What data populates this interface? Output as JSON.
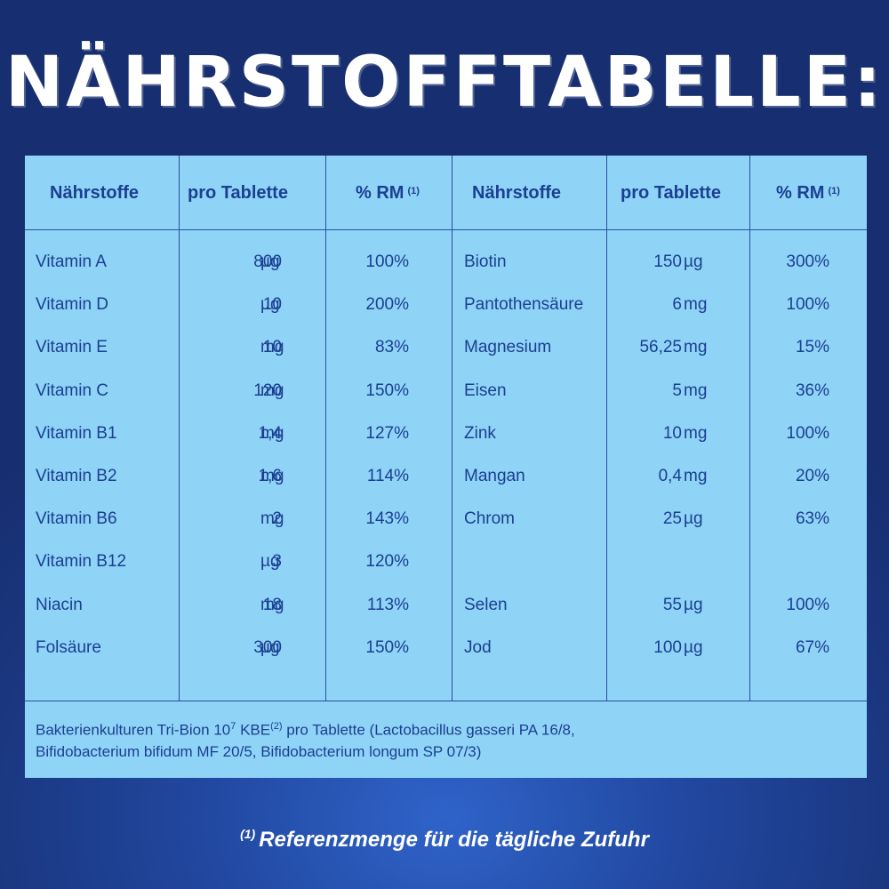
{
  "title": "NÄHRSTOFFTABELLE:",
  "headers": {
    "naehrstoffe": "Nährstoffe",
    "pro_tablette": "pro Tablette",
    "rm": "% RM",
    "rm_sup": "(1)"
  },
  "left_rows": [
    {
      "name": "Vitamin A",
      "amount": "800",
      "unit": "µg",
      "rm": "100%"
    },
    {
      "name": "Vitamin D",
      "amount": "10",
      "unit": "µg",
      "rm": "200%"
    },
    {
      "name": "Vitamin E",
      "amount": "10",
      "unit": "mg",
      "rm": "83%"
    },
    {
      "name": "Vitamin C",
      "amount": "120",
      "unit": "mg",
      "rm": "150%"
    },
    {
      "name": "Vitamin B1",
      "amount": "1,4",
      "unit": "mg",
      "rm": "127%"
    },
    {
      "name": "Vitamin B2",
      "amount": "1,6",
      "unit": "mg",
      "rm": "114%"
    },
    {
      "name": "Vitamin B6",
      "amount": "2",
      "unit": "mg",
      "rm": "143%"
    },
    {
      "name": "Vitamin B12",
      "amount": "3",
      "unit": "µg",
      "rm": "120%"
    },
    {
      "name": "Niacin",
      "amount": "18",
      "unit": "mg",
      "rm": "113%"
    },
    {
      "name": "Folsäure",
      "amount": "300",
      "unit": "µg",
      "rm": "150%"
    }
  ],
  "right_rows": [
    {
      "name": "Biotin",
      "amount": "150",
      "unit": "µg",
      "rm": "300%"
    },
    {
      "name": "Pantothensäure",
      "amount": "6",
      "unit": "mg",
      "rm": "100%"
    },
    {
      "name": "Magnesium",
      "amount": "56,25",
      "unit": "mg",
      "rm": "15%"
    },
    {
      "name": "Eisen",
      "amount": "5",
      "unit": "mg",
      "rm": "36%"
    },
    {
      "name": "Zink",
      "amount": "10",
      "unit": "mg",
      "rm": "100%"
    },
    {
      "name": "Mangan",
      "amount": "0,4",
      "unit": "mg",
      "rm": "20%"
    },
    {
      "name": "Chrom",
      "amount": "25",
      "unit": "µg",
      "rm": "63%"
    },
    {
      "name": "",
      "amount": "",
      "unit": "",
      "rm": ""
    },
    {
      "name": "Selen",
      "amount": "55",
      "unit": "µg",
      "rm": "100%"
    },
    {
      "name": "Jod",
      "amount": "100",
      "unit": "µg",
      "rm": "67%"
    }
  ],
  "bacteria": {
    "line1_a": "Bakterienkulturen Tri-Bion 10",
    "exp": "7",
    "line1_b": " KBE",
    "kbe_sup": "(2)",
    "line1_c": " pro Tablette (Lactobacillus gasseri PA 16/8,",
    "line2": "Bifidobacterium bifidum MF 20/5, Bifidobacterium longum SP 07/3)"
  },
  "reference_note": {
    "sup": "(1)",
    "text": "Referenzmenge für die tägliche Zufuhr"
  },
  "colors": {
    "background": "#1a367e",
    "panel": "#8fd3f6",
    "text": "#1b3f92",
    "lines": "#2a4e9e"
  }
}
